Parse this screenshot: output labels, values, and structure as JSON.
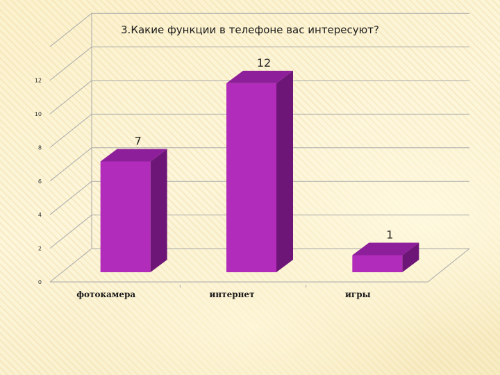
{
  "chart_data": {
    "type": "bar",
    "title": "3.Какие функции в телефоне вас интересуют?",
    "categories": [
      "фотокамера",
      "интернет",
      "игры"
    ],
    "values": [
      7,
      12,
      1
    ],
    "data_labels": [
      "7",
      "12",
      "1"
    ],
    "yticks": [
      0,
      2,
      4,
      6,
      8,
      10,
      12
    ],
    "ylim": [
      0,
      14
    ],
    "grid": true,
    "legend": "none",
    "three_d": true,
    "colors": {
      "bar_front": "#b12cba",
      "bar_side": "#6e1678",
      "bar_top": "#8e1f9a",
      "grid": "#a9a9a9"
    }
  }
}
